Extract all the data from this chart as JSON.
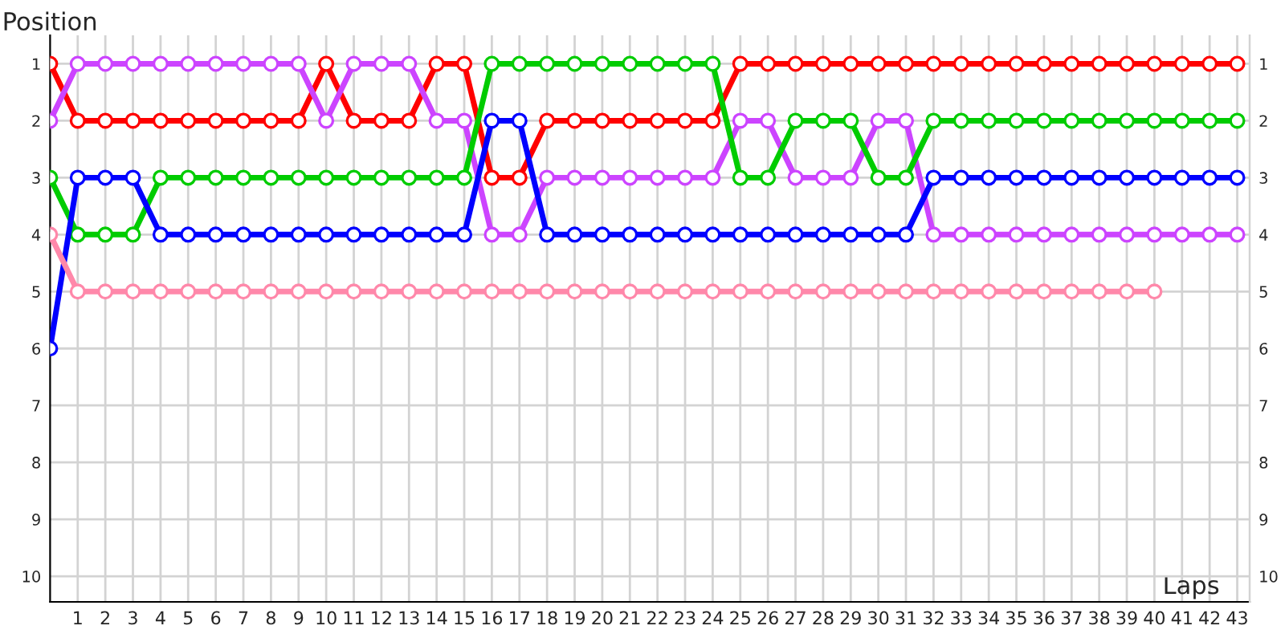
{
  "chart_data": {
    "type": "line",
    "xlabel": "Laps",
    "ylabel": "Position",
    "x": [
      0,
      1,
      2,
      3,
      4,
      5,
      6,
      7,
      8,
      9,
      10,
      11,
      12,
      13,
      14,
      15,
      16,
      17,
      18,
      19,
      20,
      21,
      22,
      23,
      24,
      25,
      26,
      27,
      28,
      29,
      30,
      31,
      32,
      33,
      34,
      35,
      36,
      37,
      38,
      39,
      40,
      41,
      42,
      43
    ],
    "series": [
      {
        "color": "#ff0000",
        "values": [
          1,
          2,
          2,
          2,
          2,
          2,
          2,
          2,
          2,
          2,
          1,
          2,
          2,
          2,
          1,
          1,
          3,
          3,
          2,
          2,
          2,
          2,
          2,
          2,
          2,
          1,
          1,
          1,
          1,
          1,
          1,
          1,
          1,
          1,
          1,
          1,
          1,
          1,
          1,
          1,
          1,
          1,
          1,
          1
        ]
      },
      {
        "color": "#cc44ff",
        "values": [
          2,
          1,
          1,
          1,
          1,
          1,
          1,
          1,
          1,
          1,
          2,
          1,
          1,
          1,
          2,
          2,
          4,
          4,
          3,
          3,
          3,
          3,
          3,
          3,
          3,
          2,
          2,
          3,
          3,
          3,
          2,
          2,
          4,
          4,
          4,
          4,
          4,
          4,
          4,
          4,
          4,
          4,
          4,
          4
        ]
      },
      {
        "color": "#00cc00",
        "values": [
          3,
          4,
          4,
          4,
          3,
          3,
          3,
          3,
          3,
          3,
          3,
          3,
          3,
          3,
          3,
          3,
          1,
          1,
          1,
          1,
          1,
          1,
          1,
          1,
          1,
          3,
          3,
          2,
          2,
          2,
          3,
          3,
          2,
          2,
          2,
          2,
          2,
          2,
          2,
          2,
          2,
          2,
          2,
          2
        ]
      },
      {
        "color": "#0000ff",
        "values": [
          6,
          3,
          3,
          3,
          4,
          4,
          4,
          4,
          4,
          4,
          4,
          4,
          4,
          4,
          4,
          4,
          2,
          2,
          4,
          4,
          4,
          4,
          4,
          4,
          4,
          4,
          4,
          4,
          4,
          4,
          4,
          4,
          3,
          3,
          3,
          3,
          3,
          3,
          3,
          3,
          3,
          3,
          3,
          3
        ]
      },
      {
        "color": "#ff88aa",
        "values": [
          4,
          5,
          5,
          5,
          5,
          5,
          5,
          5,
          5,
          5,
          5,
          5,
          5,
          5,
          5,
          5,
          5,
          5,
          5,
          5,
          5,
          5,
          5,
          5,
          5,
          5,
          5,
          5,
          5,
          5,
          5,
          5,
          5,
          5,
          5,
          5,
          5,
          5,
          5,
          5,
          5,
          null,
          null,
          null
        ]
      }
    ],
    "xlim": [
      0,
      43.45
    ],
    "xticks": [
      1,
      2,
      3,
      4,
      5,
      6,
      7,
      8,
      9,
      10,
      11,
      12,
      13,
      14,
      15,
      16,
      17,
      18,
      19,
      20,
      21,
      22,
      23,
      24,
      25,
      26,
      27,
      28,
      29,
      30,
      31,
      32,
      33,
      34,
      35,
      36,
      37,
      38,
      39,
      40,
      41,
      42,
      43
    ],
    "ylim": [
      10.45,
      0.5
    ],
    "yticks": [
      1,
      2,
      3,
      4,
      5,
      6,
      7,
      8,
      9,
      10
    ],
    "y2lim": [
      10.45,
      0.5
    ],
    "y2ticks": [
      1,
      2,
      3,
      4,
      5,
      6,
      7,
      8,
      9,
      10
    ],
    "grid": true,
    "legend": false,
    "marker": "circle",
    "line_style": "solid"
  }
}
